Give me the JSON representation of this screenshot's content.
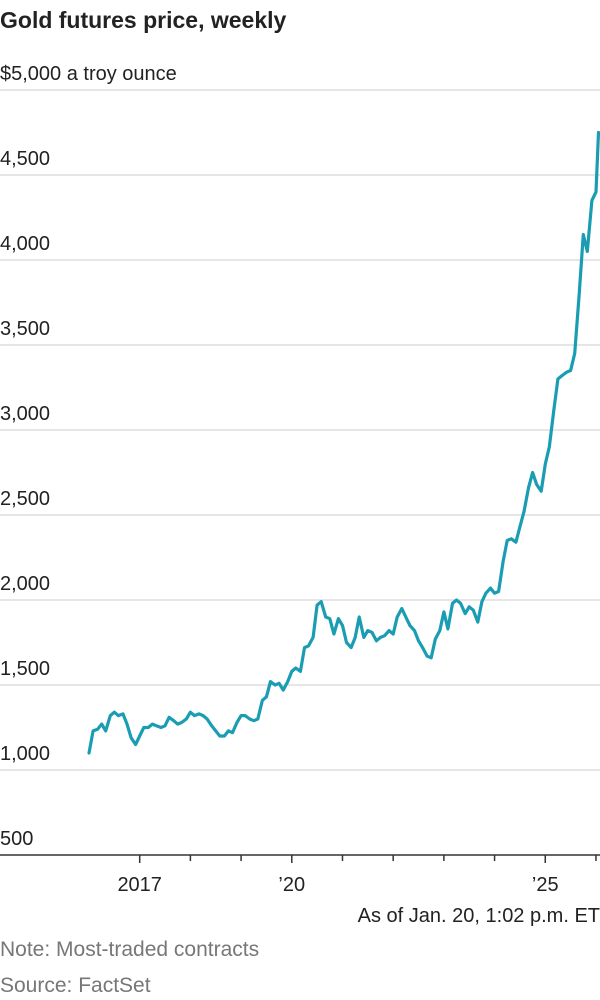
{
  "chart_data": {
    "type": "line",
    "title": "Gold futures price, weekly",
    "annotation": "As of Jan. 20, 1:02 p.m. ET",
    "note": "Note: Most-traded contracts",
    "source": "Source: FactSet",
    "color": "#1a9db3",
    "grid": true,
    "ylim": [
      500,
      5000
    ],
    "yticks": [
      500,
      {
        "value": 1000,
        "label": "1,000"
      },
      {
        "value": 1500,
        "label": "1,500"
      },
      {
        "value": 2000,
        "label": "2,000"
      },
      {
        "value": 2500,
        "label": "2,500"
      },
      {
        "value": 3000,
        "label": "3,000"
      },
      {
        "value": 3500,
        "label": "3,500"
      },
      {
        "value": 4000,
        "label": "4,000"
      },
      {
        "value": 4500,
        "label": "4,500"
      },
      {
        "value": 5000,
        "label": "$5,000 a troy ounce"
      }
    ],
    "xlim": [
      2016,
      2026.06
    ],
    "xticks": [
      2017,
      {
        "value": 2020,
        "label": "’20"
      },
      {
        "value": 2025,
        "label": "’25"
      }
    ],
    "xminor_ticks": [
      2018,
      2019,
      2021,
      2022,
      2023,
      2024,
      2026
    ],
    "x": [
      2016.0,
      2016.08,
      2016.17,
      2016.25,
      2016.33,
      2016.42,
      2016.5,
      2016.58,
      2016.67,
      2016.75,
      2016.83,
      2016.92,
      2017.0,
      2017.08,
      2017.17,
      2017.25,
      2017.33,
      2017.42,
      2017.5,
      2017.58,
      2017.67,
      2017.75,
      2017.83,
      2017.92,
      2018.0,
      2018.08,
      2018.17,
      2018.25,
      2018.33,
      2018.42,
      2018.5,
      2018.58,
      2018.67,
      2018.75,
      2018.83,
      2018.92,
      2019.0,
      2019.08,
      2019.17,
      2019.25,
      2019.33,
      2019.42,
      2019.5,
      2019.58,
      2019.67,
      2019.75,
      2019.83,
      2019.92,
      2020.0,
      2020.08,
      2020.17,
      2020.25,
      2020.33,
      2020.42,
      2020.5,
      2020.58,
      2020.67,
      2020.75,
      2020.83,
      2020.92,
      2021.0,
      2021.08,
      2021.17,
      2021.25,
      2021.33,
      2021.42,
      2021.5,
      2021.58,
      2021.67,
      2021.75,
      2021.83,
      2021.92,
      2022.0,
      2022.08,
      2022.17,
      2022.25,
      2022.33,
      2022.42,
      2022.5,
      2022.58,
      2022.67,
      2022.75,
      2022.83,
      2022.92,
      2023.0,
      2023.08,
      2023.17,
      2023.25,
      2023.33,
      2023.42,
      2023.5,
      2023.58,
      2023.67,
      2023.75,
      2023.83,
      2023.92,
      2024.0,
      2024.08,
      2024.17,
      2024.25,
      2024.33,
      2024.42,
      2024.5,
      2024.58,
      2024.67,
      2024.75,
      2024.83,
      2024.92,
      2025.0,
      2025.08,
      2025.17,
      2025.25,
      2025.33,
      2025.42,
      2025.5,
      2025.58,
      2025.67,
      2025.75,
      2025.83,
      2025.92,
      2026.0,
      2026.05
    ],
    "values": [
      1100,
      1230,
      1240,
      1270,
      1230,
      1320,
      1340,
      1320,
      1330,
      1270,
      1190,
      1150,
      1200,
      1250,
      1250,
      1270,
      1260,
      1250,
      1260,
      1310,
      1290,
      1270,
      1280,
      1300,
      1340,
      1320,
      1330,
      1320,
      1300,
      1260,
      1230,
      1200,
      1200,
      1230,
      1220,
      1280,
      1320,
      1320,
      1300,
      1290,
      1300,
      1410,
      1430,
      1520,
      1500,
      1510,
      1470,
      1520,
      1580,
      1600,
      1580,
      1720,
      1730,
      1780,
      1970,
      1990,
      1900,
      1890,
      1800,
      1890,
      1850,
      1750,
      1720,
      1780,
      1900,
      1780,
      1820,
      1810,
      1760,
      1780,
      1790,
      1820,
      1800,
      1900,
      1950,
      1900,
      1850,
      1820,
      1760,
      1720,
      1670,
      1660,
      1770,
      1820,
      1930,
      1830,
      1980,
      2000,
      1980,
      1920,
      1960,
      1940,
      1870,
      1990,
      2040,
      2070,
      2040,
      2050,
      2230,
      2350,
      2360,
      2340,
      2430,
      2520,
      2660,
      2750,
      2680,
      2640,
      2800,
      2900,
      3120,
      3300,
      3320,
      3340,
      3350,
      3450,
      3800,
      4150,
      4050,
      4350,
      4400,
      4750
    ]
  }
}
